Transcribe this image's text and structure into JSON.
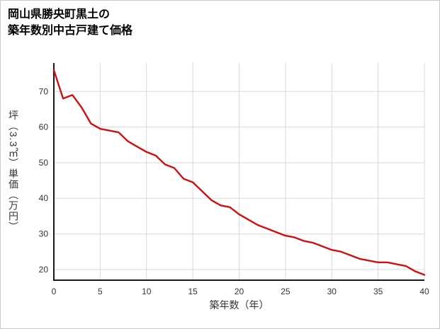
{
  "header": {
    "title_line1": "岡山県勝央町黒土の",
    "title_line2": "築年数別中古戸建て価格"
  },
  "chart_data": {
    "type": "line",
    "title": "岡山県勝央町黒土の築年数別中古戸建て価格",
    "xlabel": "築年数（年）",
    "ylabel": "坪（3.3㎡）単価（万円）",
    "x": [
      0,
      1,
      2,
      3,
      4,
      5,
      6,
      7,
      8,
      9,
      10,
      11,
      12,
      13,
      14,
      15,
      16,
      17,
      18,
      19,
      20,
      21,
      22,
      23,
      24,
      25,
      26,
      27,
      28,
      29,
      30,
      31,
      32,
      33,
      34,
      35,
      36,
      37,
      38,
      39,
      40
    ],
    "values": [
      76,
      68,
      69,
      65.5,
      61,
      59.5,
      59,
      58.5,
      56,
      54.5,
      53,
      52,
      49.5,
      48.5,
      45.5,
      44.5,
      42,
      39.5,
      38,
      37.5,
      35.5,
      34,
      32.5,
      31.5,
      30.5,
      29.5,
      29,
      28,
      27.5,
      26.5,
      25.5,
      25,
      24,
      23,
      22.5,
      22,
      22,
      21.5,
      21,
      19.5,
      18.5
    ],
    "xlim": [
      0,
      40
    ],
    "ylim": [
      17,
      78
    ],
    "x_ticks": [
      0,
      5,
      10,
      15,
      20,
      25,
      30,
      35,
      40
    ],
    "y_ticks": [
      20,
      30,
      40,
      50,
      60,
      70
    ],
    "grid": true,
    "legend": "none",
    "line_color": "#cc1111",
    "grid_color": "#d9d9d9",
    "axis_color": "#1a1a1a",
    "text_color": "#333333"
  }
}
